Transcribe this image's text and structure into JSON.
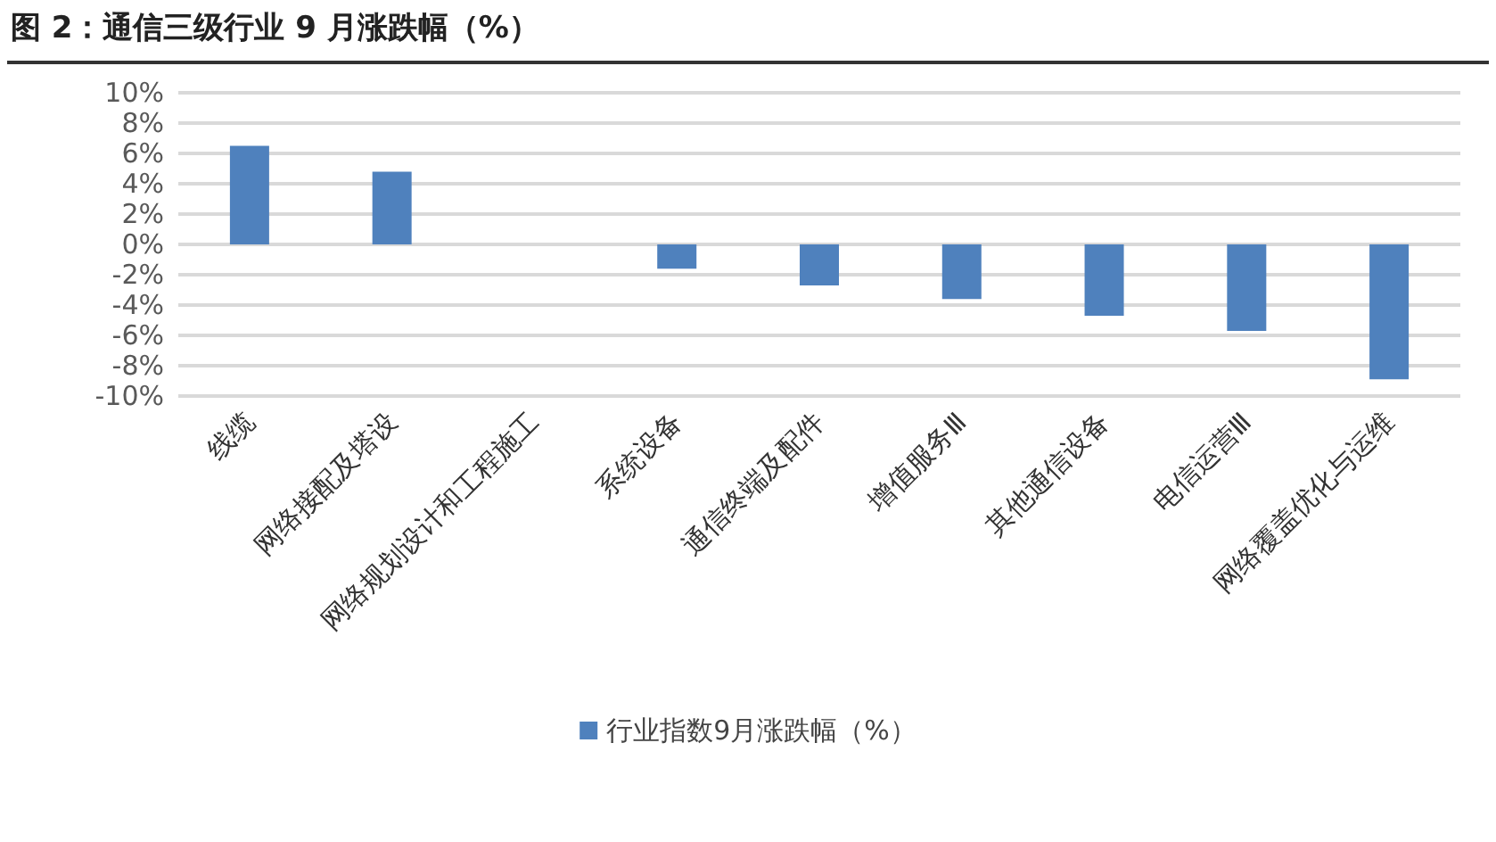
{
  "chart_data": {
    "type": "bar",
    "title": "图 2：通信三级行业 9 月涨跌幅（%）",
    "categories": [
      "线缆",
      "网络接配及塔设",
      "网络规划设计和工程施工",
      "系统设备",
      "通信终端及配件",
      "增值服务Ⅲ",
      "其他通信设备",
      "电信运营Ⅲ",
      "网络覆盖优化与运维"
    ],
    "series": [
      {
        "name": "行业指数9月涨跌幅（%）",
        "color": "#4f81bd",
        "values": [
          6.5,
          4.8,
          0,
          -1.6,
          -2.7,
          -3.6,
          -4.7,
          -5.7,
          -8.9
        ]
      }
    ],
    "ylim": [
      -10,
      10
    ],
    "yticks": [
      {
        "value": -10,
        "label": "-10%"
      },
      {
        "value": -8,
        "label": "-8%"
      },
      {
        "value": -6,
        "label": "-6%"
      },
      {
        "value": -4,
        "label": "-4%"
      },
      {
        "value": -2,
        "label": "-2%"
      },
      {
        "value": 0,
        "label": "0%"
      },
      {
        "value": 2,
        "label": "2%"
      },
      {
        "value": 4,
        "label": "4%"
      },
      {
        "value": 6,
        "label": "6%"
      },
      {
        "value": 8,
        "label": "8%"
      },
      {
        "value": 10,
        "label": "10%"
      }
    ],
    "grid": "y",
    "legend": "bottom"
  }
}
